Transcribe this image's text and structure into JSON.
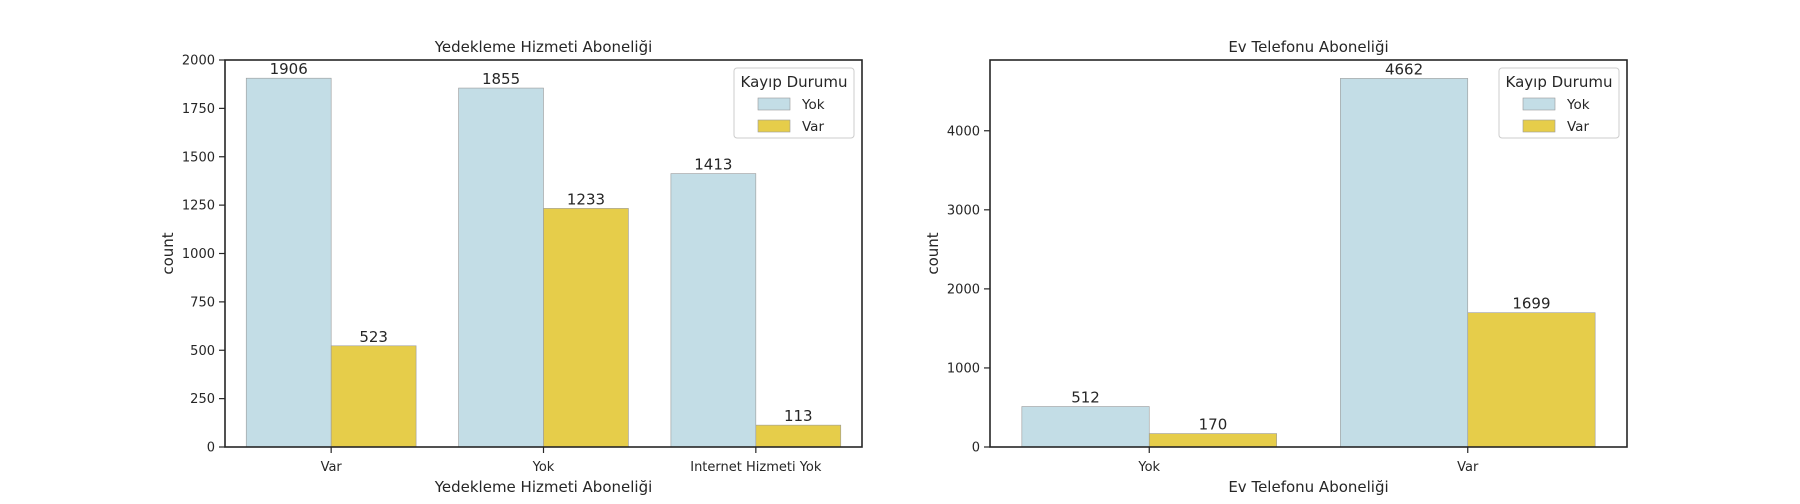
{
  "colors": {
    "Yok": "#c3dde6",
    "Var": "#e6cd4a"
  },
  "chart_data": [
    {
      "type": "bar",
      "title": "Yedekleme Hizmeti Aboneliği",
      "xlabel": "Yedekleme Hizmeti Aboneliği",
      "ylabel": "count",
      "categories": [
        "Var",
        "Yok",
        "Internet Hizmeti Yok"
      ],
      "ylim": [
        0,
        2000
      ],
      "yticks": [
        0,
        250,
        500,
        750,
        1000,
        1250,
        1500,
        1750,
        2000
      ],
      "legend": {
        "title": "Kayıp Durumu",
        "position": "top-right"
      },
      "series": [
        {
          "name": "Yok",
          "values": [
            1906,
            1855,
            1413
          ]
        },
        {
          "name": "Var",
          "values": [
            523,
            1233,
            113
          ]
        }
      ]
    },
    {
      "type": "bar",
      "title": "Ev Telefonu Aboneliği",
      "xlabel": "Ev Telefonu Aboneliği",
      "ylabel": "count",
      "categories": [
        "Yok",
        "Var"
      ],
      "ylim": [
        0,
        4895
      ],
      "yticks": [
        0,
        1000,
        2000,
        3000,
        4000
      ],
      "legend": {
        "title": "Kayıp Durumu",
        "position": "top-right"
      },
      "series": [
        {
          "name": "Yok",
          "values": [
            512,
            4662
          ]
        },
        {
          "name": "Var",
          "values": [
            170,
            1699
          ]
        }
      ]
    }
  ]
}
